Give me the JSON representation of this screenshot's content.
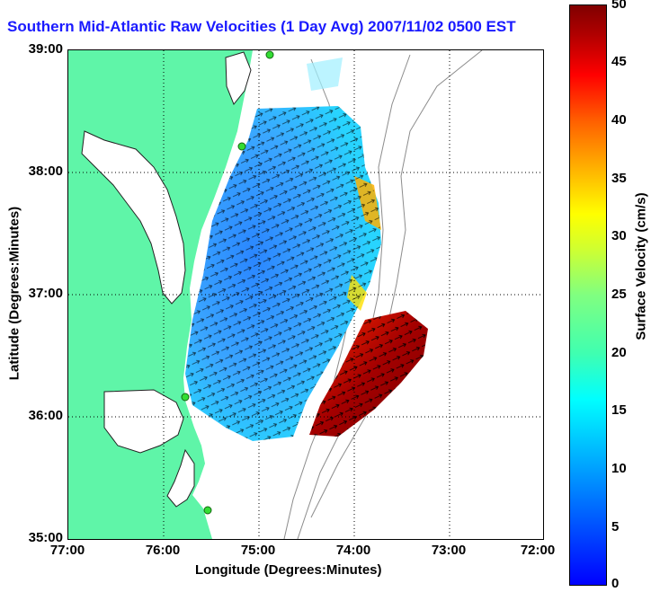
{
  "title": "Southern Mid-Atlantic Raw Velocities (1 Day Avg) 2007/11/02 0500 EST",
  "map": {
    "xlabel": "Longitude (Degrees:Minutes)",
    "ylabel": "Latitude (Degrees:Minutes)",
    "x_ticks": [
      "77:00",
      "76:00",
      "75:00",
      "74:00",
      "73:00",
      "72:00"
    ],
    "y_ticks": [
      "39:00",
      "38:00",
      "37:00",
      "36:00",
      "35:00"
    ],
    "lon_range": [
      -77,
      -72
    ],
    "lat_range": [
      35,
      39
    ],
    "grid": "dotted",
    "land_color": "#5ff5a8"
  },
  "colorbar": {
    "label": "Surface Velocity (cm/s)",
    "min": 0,
    "max": 50,
    "ticks": [
      "50",
      "45",
      "40",
      "35",
      "30",
      "25",
      "20",
      "15",
      "10",
      "5",
      "0"
    ],
    "colormap": "jet"
  }
}
